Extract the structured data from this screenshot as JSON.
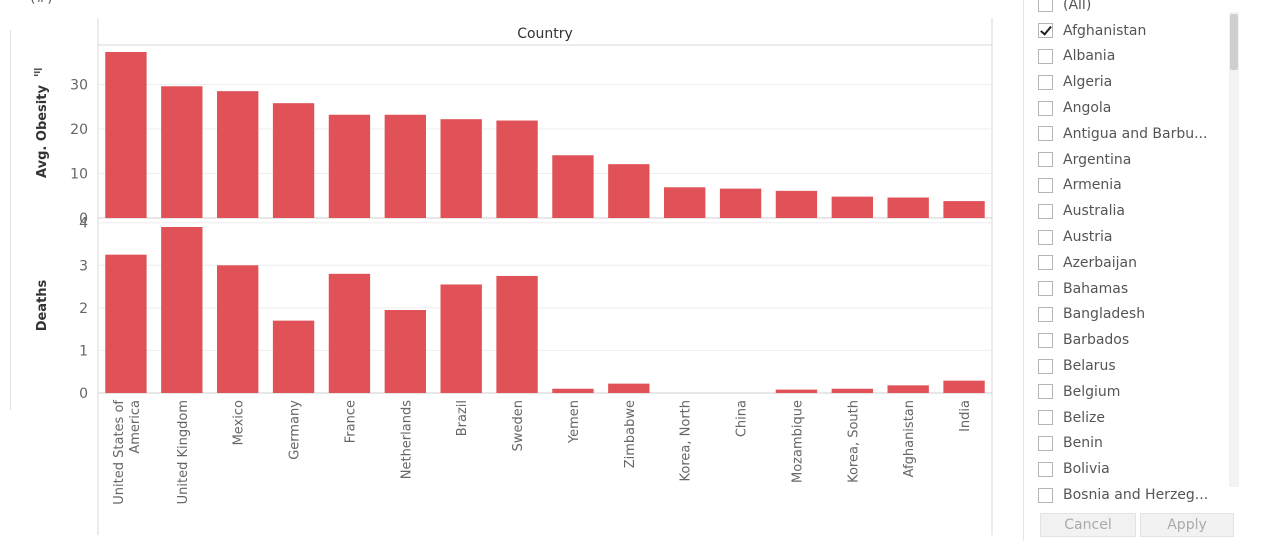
{
  "header_fragment": "(#)",
  "chart_data": {
    "type": "bar",
    "column_header": "Country",
    "categories": [
      "United States of America",
      "United Kingdom",
      "Mexico",
      "Germany",
      "France",
      "Netherlands",
      "Brazil",
      "Sweden",
      "Yemen",
      "Zimbabwe",
      "Korea, North",
      "China",
      "Mozambique",
      "Korea, South",
      "Afghanistan",
      "India"
    ],
    "panels": [
      {
        "ylabel": "Avg. Obesity",
        "ylim": [
          0,
          38
        ],
        "ticks": [
          0,
          10,
          20,
          30
        ],
        "values": [
          37.3,
          29.6,
          28.5,
          25.8,
          23.2,
          23.2,
          22.2,
          21.9,
          14.1,
          12.1,
          6.9,
          6.6,
          6.1,
          4.8,
          4.6,
          3.8
        ]
      },
      {
        "ylabel": "Deaths",
        "ylim": [
          0,
          4
        ],
        "ticks": [
          0,
          1,
          2,
          3,
          4
        ],
        "values": [
          3.25,
          3.9,
          3.0,
          1.7,
          2.8,
          1.95,
          2.55,
          2.75,
          0.1,
          0.22,
          0.0,
          0.0,
          0.08,
          0.1,
          0.18,
          0.29
        ]
      }
    ],
    "bar_color": "#e05257",
    "grid": true,
    "legend": "none"
  },
  "filter": {
    "items": [
      {
        "label": "(All)",
        "checked": false
      },
      {
        "label": "Afghanistan",
        "checked": true
      },
      {
        "label": "Albania",
        "checked": false
      },
      {
        "label": "Algeria",
        "checked": false
      },
      {
        "label": "Angola",
        "checked": false
      },
      {
        "label": "Antigua and Barbu...",
        "checked": false
      },
      {
        "label": "Argentina",
        "checked": false
      },
      {
        "label": "Armenia",
        "checked": false
      },
      {
        "label": "Australia",
        "checked": false
      },
      {
        "label": "Austria",
        "checked": false
      },
      {
        "label": "Azerbaijan",
        "checked": false
      },
      {
        "label": "Bahamas",
        "checked": false
      },
      {
        "label": "Bangladesh",
        "checked": false
      },
      {
        "label": "Barbados",
        "checked": false
      },
      {
        "label": "Belarus",
        "checked": false
      },
      {
        "label": "Belgium",
        "checked": false
      },
      {
        "label": "Belize",
        "checked": false
      },
      {
        "label": "Benin",
        "checked": false
      },
      {
        "label": "Bolivia",
        "checked": false
      },
      {
        "label": "Bosnia and Herzeg...",
        "checked": false
      }
    ],
    "cancel_label": "Cancel",
    "apply_label": "Apply"
  }
}
